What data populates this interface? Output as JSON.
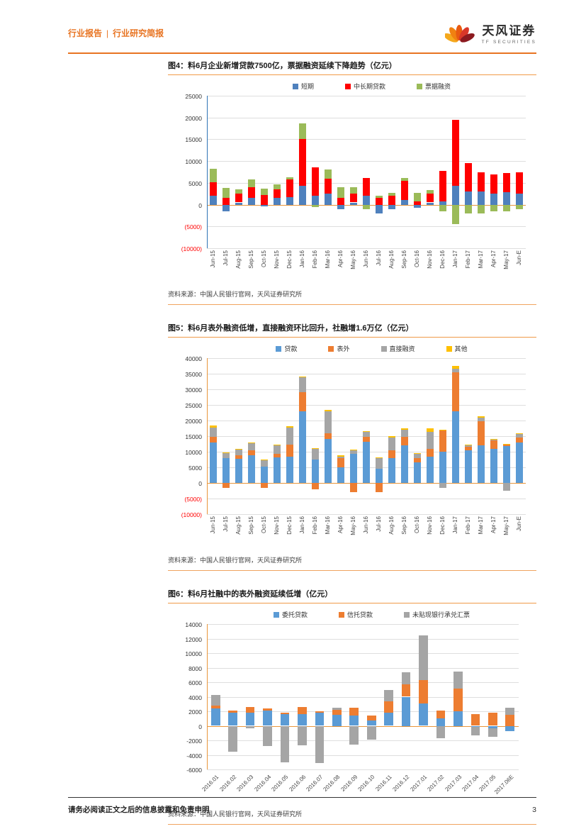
{
  "page": {
    "header": {
      "left_primary": "行业报告",
      "separator": "|",
      "left_secondary": "行业研究简报"
    },
    "brand": {
      "name_cn": "天风证券",
      "name_en": "TF SECURITIES"
    },
    "footer": {
      "disclaimer": "请务必阅读正文之后的信息披露和免责申明",
      "page_number": "3"
    }
  },
  "chart_data": [
    {
      "type": "bar",
      "stacked": true,
      "title": "图4：料6月企业新增贷款7500亿，票据融资延续下降趋势（亿元）",
      "source": "资料来源：中国人民银行官网，天风证券研究所",
      "legend_position": "top",
      "grid": true,
      "ylim": [
        -10000,
        25000
      ],
      "ytick_values": [
        25000,
        20000,
        15000,
        10000,
        5000,
        0,
        -5000,
        -10000
      ],
      "ytick_labels": [
        "25000",
        "20000",
        "15000",
        "10000",
        "5000",
        "0",
        "(5000)",
        "(10000)"
      ],
      "negative_labels_red": true,
      "categories": [
        "Jun-15",
        "Jul-15",
        "Aug-15",
        "Sep-15",
        "Oct-15",
        "Nov-15",
        "Dec-15",
        "Jan-16",
        "Feb-16",
        "Mar-16",
        "Apr-16",
        "May-16",
        "Jun-16",
        "Jul-16",
        "Aug-16",
        "Sep-16",
        "Oct-16",
        "Nov-16",
        "Dec-16",
        "Jan-17",
        "Feb-17",
        "Mar-17",
        "Apr-17",
        "May-17",
        "Jun-E"
      ],
      "series": [
        {
          "name": "短期",
          "color": "#4F81BD",
          "values": [
            2100,
            -1600,
            500,
            1500,
            -400,
            1500,
            1800,
            4400,
            2000,
            2500,
            -1000,
            500,
            2000,
            -2000,
            -1100,
            1000,
            -800,
            500,
            800,
            4300,
            3000,
            3000,
            2500,
            2900,
            2500
          ]
        },
        {
          "name": "中长期贷款",
          "color": "#FF0000",
          "values": [
            3000,
            1600,
            2000,
            2500,
            2200,
            2000,
            4000,
            10600,
            6500,
            3500,
            1500,
            2000,
            4100,
            1500,
            2100,
            4500,
            700,
            2000,
            7000,
            15200,
            6500,
            4500,
            4500,
            4400,
            5000
          ]
        },
        {
          "name": "票据融资",
          "color": "#9BBB59",
          "values": [
            3200,
            2300,
            1000,
            1800,
            1500,
            1200,
            500,
            3700,
            -500,
            2000,
            2500,
            1500,
            -1000,
            500,
            600,
            600,
            2000,
            900,
            -1600,
            -4500,
            -2000,
            -2000,
            -1500,
            -1500,
            -1000
          ]
        }
      ]
    },
    {
      "type": "bar",
      "stacked": true,
      "title": "图5：料6月表外融资低增，直接融资环比回升，社融增1.6万亿（亿元）",
      "source": "资料来源：中国人民银行官网，天风证券研究所",
      "legend_position": "top",
      "grid": true,
      "ylim": [
        -10000,
        40000
      ],
      "ytick_values": [
        40000,
        35000,
        30000,
        25000,
        20000,
        15000,
        10000,
        5000,
        0,
        -5000,
        -10000
      ],
      "ytick_labels": [
        "40000",
        "35000",
        "30000",
        "25000",
        "20000",
        "15000",
        "10000",
        "5000",
        "0",
        "(5000)",
        "(10000)"
      ],
      "negative_labels_red": true,
      "categories": [
        "Jun-15",
        "Jul-15",
        "Aug-15",
        "Sep-15",
        "Oct-15",
        "Nov-15",
        "Dec-15",
        "Jan-16",
        "Feb-16",
        "Mar-16",
        "Apr-16",
        "May-16",
        "Jun-16",
        "Jul-16",
        "Aug-16",
        "Sep-16",
        "Oct-16",
        "Nov-16",
        "Dec-16",
        "Jan-17",
        "Feb-17",
        "Mar-17",
        "Apr-17",
        "May-17",
        "Jun-E"
      ],
      "series": [
        {
          "name": "贷款",
          "color": "#5B9BD5",
          "values": [
            13000,
            8000,
            7800,
            8800,
            5300,
            8200,
            8300,
            23000,
            7500,
            14000,
            5000,
            9400,
            13200,
            4600,
            8000,
            12000,
            6500,
            8400,
            10000,
            23000,
            10500,
            12000,
            11000,
            11800,
            13000
          ]
        },
        {
          "name": "表外",
          "color": "#ED7D31",
          "values": [
            1800,
            -1500,
            1100,
            1600,
            -1600,
            1100,
            4000,
            6000,
            -2000,
            2000,
            3000,
            -3000,
            1500,
            -3000,
            2500,
            2700,
            1500,
            2600,
            6800,
            12500,
            1000,
            7800,
            2600,
            500,
            1500
          ]
        },
        {
          "name": "直接融资",
          "color": "#A5A5A5",
          "values": [
            2900,
            1500,
            1700,
            2300,
            2000,
            2700,
            5500,
            4800,
            3300,
            7000,
            500,
            1000,
            1700,
            3300,
            4000,
            2300,
            1400,
            5400,
            -1500,
            1200,
            500,
            1200,
            300,
            -2400,
            1200
          ]
        },
        {
          "name": "其他",
          "color": "#FFC000",
          "values": [
            800,
            200,
            300,
            300,
            300,
            300,
            400,
            400,
            300,
            400,
            300,
            200,
            300,
            300,
            500,
            500,
            200,
            1000,
            300,
            800,
            200,
            300,
            200,
            200,
            300
          ]
        }
      ]
    },
    {
      "type": "bar",
      "stacked": true,
      "title": "图6：料6月社融中的表外融资延续低增（亿元）",
      "source": "资料来源：中国人民银行官网，天风证券研究所",
      "legend_position": "top",
      "grid": true,
      "ylim": [
        -6000,
        14000
      ],
      "ytick_values": [
        14000,
        12000,
        10000,
        8000,
        6000,
        4000,
        2000,
        0,
        -2000,
        -4000,
        -6000
      ],
      "ytick_labels": [
        "14000",
        "12000",
        "10000",
        "8000",
        "6000",
        "4000",
        "2000",
        "0",
        "-2000",
        "-4000",
        "-6000"
      ],
      "negative_labels_red": false,
      "categories": [
        "2016.01",
        "2016.02",
        "2016.03",
        "2016.04",
        "2016.05",
        "2016.06",
        "2016.07",
        "2016.08",
        "2016.09",
        "2016.10",
        "2016.11",
        "2016.12",
        "2017.01",
        "2017.02",
        "2017.03",
        "2017.04",
        "2017.05",
        "2017.06E"
      ],
      "series": [
        {
          "name": "委托贷款",
          "color": "#5B9BD5",
          "values": [
            2400,
            1800,
            1800,
            2100,
            1600,
            1600,
            1800,
            1500,
            1400,
            700,
            1800,
            4000,
            3100,
            1000,
            2000,
            -100,
            -300,
            -700
          ]
        },
        {
          "name": "信托贷款",
          "color": "#ED7D31",
          "values": [
            400,
            300,
            800,
            300,
            200,
            1000,
            200,
            700,
            1100,
            700,
            1600,
            1700,
            3200,
            1100,
            3100,
            1600,
            1800,
            1500
          ]
        },
        {
          "name": "未贴现银行承兑汇票",
          "color": "#A5A5A5",
          "values": [
            1400,
            -3600,
            -300,
            -2800,
            -5000,
            -2700,
            -5100,
            300,
            -2600,
            -1900,
            1500,
            1700,
            6100,
            -1700,
            2400,
            -1200,
            -1200,
            1000
          ]
        }
      ]
    }
  ]
}
